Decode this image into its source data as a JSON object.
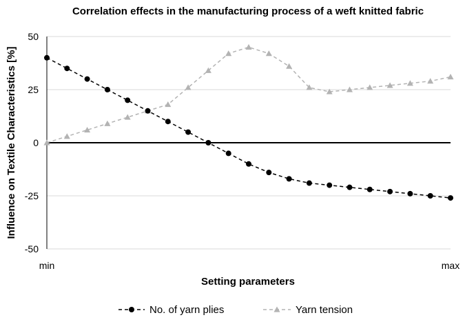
{
  "chart_data": {
    "type": "line",
    "title": "Correlation effects in the manufacturing process of a weft knitted fabric",
    "xlabel": "Setting parameters",
    "ylabel": "Influence on Textile Characteristics [%]",
    "x_tick_labels": [
      "min",
      "max"
    ],
    "y_ticks": [
      -50,
      -25,
      0,
      25,
      50
    ],
    "ylim": [
      -50,
      50
    ],
    "grid": true,
    "legend_position": "bottom",
    "x": [
      0,
      1,
      2,
      3,
      4,
      5,
      6,
      7,
      8,
      9,
      10,
      11,
      12,
      13,
      14,
      15,
      16,
      17,
      18,
      19,
      20
    ],
    "series": [
      {
        "name": "No. of yarn plies",
        "color": "#000000",
        "marker": "circle",
        "values": [
          40,
          35,
          30,
          25,
          20,
          15,
          10,
          5,
          0,
          -5,
          -10,
          -14,
          -17,
          -19,
          -20,
          -21,
          -22,
          -23,
          -24,
          -25,
          -26
        ]
      },
      {
        "name": "Yarn tension",
        "color": "#b3b3b3",
        "marker": "triangle",
        "values": [
          0,
          3,
          6,
          9,
          12,
          15,
          18,
          26,
          34,
          42,
          45,
          42,
          36,
          26,
          24,
          25,
          26,
          27,
          28,
          29,
          31
        ]
      }
    ]
  }
}
